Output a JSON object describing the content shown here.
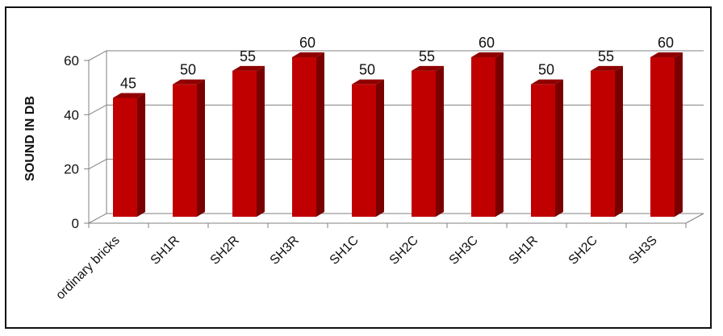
{
  "chart_data": {
    "type": "bar",
    "ylabel": "SOUND IN DB",
    "xlabel": "",
    "title": "",
    "ylim": [
      0,
      60
    ],
    "yticks": [
      0,
      20,
      40,
      60
    ],
    "grid": true,
    "style": "3d",
    "categories": [
      "ordinary bricks",
      "SH1R",
      "SH2R",
      "SH3R",
      "SH1C",
      "SH2C",
      "SH3C",
      "SH1R",
      "SH2C",
      "SH3S"
    ],
    "values": [
      45,
      50,
      55,
      60,
      50,
      55,
      60,
      50,
      55,
      60
    ],
    "bar_color": "#c00000",
    "bar_side_color": "#7a0000",
    "bar_top_color": "#8f0000"
  }
}
